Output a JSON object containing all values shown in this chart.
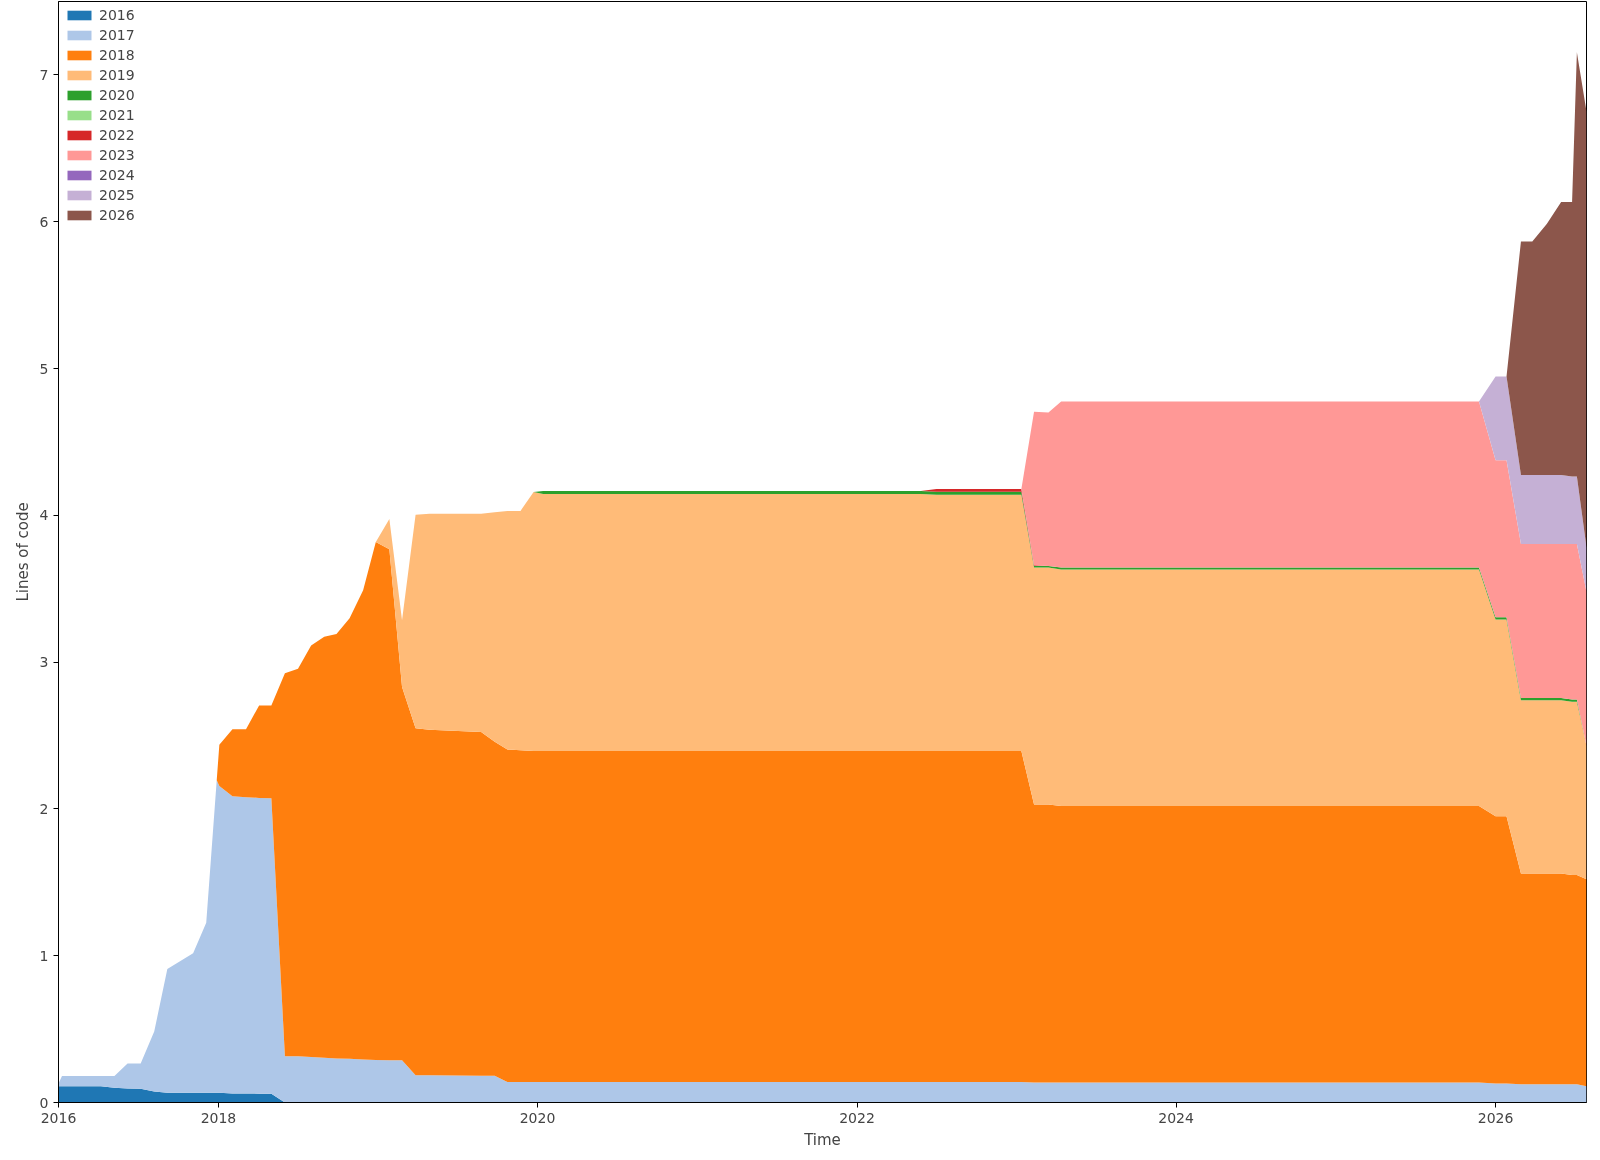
{
  "chart_data": {
    "type": "area",
    "stacked": true,
    "xlabel": "Time",
    "ylabel": "Lines of code",
    "x": [
      "2016-12-31",
      "2017-01-08",
      "2017-04-07",
      "2017-05-08",
      "2017-06-07",
      "2017-07-07",
      "2017-08-07",
      "2017-09-06",
      "2017-11-04",
      "2017-12-04",
      "2017-12-28",
      "2018-01-03",
      "2018-02-02",
      "2018-03-05",
      "2018-04-04",
      "2018-05-02",
      "2018-06-02",
      "2018-07-02",
      "2018-08-01",
      "2018-08-31",
      "2018-09-28",
      "2018-10-28",
      "2018-11-28",
      "2018-12-27",
      "2019-01-27",
      "2019-02-25",
      "2019-03-28",
      "2019-04-29",
      "2019-08-25",
      "2019-09-25",
      "2019-10-24",
      "2019-11-23",
      "2019-12-23",
      "2020-01-14",
      "2022-05-27",
      "2022-07-02",
      "2023-01-12",
      "2023-02-10",
      "2023-03-15",
      "2023-04-13",
      "2025-11-24",
      "2026-01-01",
      "2026-01-26",
      "2026-02-28",
      "2026-03-26",
      "2026-04-28",
      "2026-05-31",
      "2026-06-25",
      "2026-07-06",
      "2026-07-28"
    ],
    "xlim": [
      "2016-12-31",
      "2026-07-28"
    ],
    "ylim": [
      0,
      7.5
    ],
    "xticks": [
      {
        "value": "2016-12-31",
        "label": "2016"
      },
      "2018",
      "2020",
      "2022",
      "2024",
      "2026"
    ],
    "yticks": [
      0,
      1,
      2,
      3,
      4,
      5,
      6,
      7
    ],
    "grid": false,
    "legend": "top left",
    "series": [
      {
        "name": "2016",
        "color": "#1f77b4",
        "values": [
          0.11,
          0.11,
          0.11,
          0.1,
          0.095,
          0.093,
          0.075,
          0.066,
          0.066,
          0.066,
          0.066,
          0.066,
          0.062,
          0.062,
          0.06,
          0.06,
          0,
          0,
          0,
          0,
          0,
          0,
          0,
          0,
          0,
          0,
          0,
          0,
          0,
          0,
          0,
          0,
          0,
          0,
          0,
          0,
          0,
          0,
          0,
          0,
          0,
          0,
          0,
          0,
          0,
          0,
          0,
          0,
          0,
          0
        ]
      },
      {
        "name": "2017",
        "color": "#aec7e8",
        "values": [
          0.02,
          0.07,
          0.07,
          0.08,
          0.17,
          0.172,
          0.408,
          0.844,
          0.951,
          1.159,
          2.129,
          2.09,
          2.024,
          2.018,
          2.015,
          2.013,
          0.315,
          0.315,
          0.31,
          0.305,
          0.3,
          0.298,
          0.293,
          0.29,
          0.288,
          0.288,
          0.185,
          0.185,
          0.182,
          0.182,
          0.139,
          0.139,
          0.139,
          0.139,
          0.139,
          0.139,
          0.139,
          0.137,
          0.137,
          0.137,
          0.137,
          0.13,
          0.13,
          0.125,
          0.125,
          0.125,
          0.125,
          0.125,
          0.125,
          0.11
        ]
      },
      {
        "name": "2018",
        "color": "#ff7f0e",
        "values": [
          0,
          0,
          0,
          0,
          0,
          0,
          0,
          0,
          0,
          0,
          0,
          0.281,
          0.457,
          0.463,
          0.63,
          0.632,
          2.609,
          2.639,
          2.803,
          2.867,
          2.892,
          3.0,
          3.197,
          3.528,
          3.48,
          2.543,
          2.365,
          2.355,
          2.341,
          2.275,
          2.265,
          2.261,
          2.255,
          2.255,
          2.255,
          2.255,
          2.255,
          1.893,
          1.893,
          1.883,
          1.883,
          1.82,
          1.82,
          1.435,
          1.435,
          1.435,
          1.435,
          1.425,
          1.425,
          1.41
        ]
      },
      {
        "name": "2019",
        "color": "#ffbb78",
        "values": [
          0,
          0,
          0,
          0,
          0,
          0,
          0,
          0,
          0,
          0,
          0,
          0,
          0,
          0,
          0,
          0,
          0,
          0,
          0,
          0,
          0,
          0,
          0,
          0,
          0.206,
          0.454,
          1.453,
          1.47,
          1.487,
          1.563,
          1.626,
          1.63,
          1.765,
          1.751,
          1.751,
          1.746,
          1.746,
          1.615,
          1.615,
          1.61,
          1.61,
          1.34,
          1.34,
          1.18,
          1.18,
          1.18,
          1.18,
          1.18,
          1.18,
          0.91
        ]
      },
      {
        "name": "2020",
        "color": "#2ca02c",
        "values": [
          null,
          null,
          null,
          null,
          null,
          null,
          null,
          null,
          null,
          null,
          null,
          null,
          null,
          null,
          null,
          null,
          null,
          null,
          null,
          null,
          null,
          null,
          null,
          null,
          null,
          null,
          null,
          null,
          null,
          null,
          null,
          null,
          0,
          0.02,
          0.02,
          0.02,
          0.02,
          0.01,
          0.01,
          0.015,
          0.015,
          0.015,
          0.015,
          0.015,
          0.015,
          0.015,
          0.015,
          0.015,
          0.015,
          0
        ]
      },
      {
        "name": "2021",
        "color": "#98df8a",
        "values": [
          null,
          null,
          null,
          null,
          null,
          null,
          null,
          null,
          null,
          null,
          null,
          null,
          null,
          null,
          null,
          null,
          null,
          null,
          null,
          null,
          null,
          null,
          null,
          null,
          null,
          null,
          null,
          null,
          null,
          null,
          null,
          null,
          null,
          null,
          null,
          null,
          null,
          null,
          null,
          null,
          null,
          null,
          null,
          null,
          null,
          null,
          null,
          null,
          null,
          null
        ]
      },
      {
        "name": "2022",
        "color": "#d62728",
        "values": [
          0,
          0,
          0,
          0,
          0,
          0,
          0,
          0,
          0,
          0,
          0,
          0,
          0,
          0,
          0,
          0,
          0,
          0,
          0,
          0,
          0,
          0,
          0,
          0,
          0,
          0,
          0,
          0,
          0,
          0,
          0,
          0,
          0,
          0,
          0,
          0.02,
          0.02,
          0.005,
          0,
          0,
          0,
          0,
          0,
          0,
          0,
          0,
          0,
          0,
          0,
          0
        ]
      },
      {
        "name": "2023",
        "color": "#ff9896",
        "values": [
          0,
          0,
          0,
          0,
          0,
          0,
          0,
          0,
          0,
          0,
          0,
          0,
          0,
          0,
          0,
          0,
          0,
          0,
          0,
          0,
          0,
          0,
          0,
          0,
          0,
          0,
          0,
          0,
          0,
          0,
          0,
          0,
          0,
          0,
          0,
          0,
          0,
          1.045,
          1.045,
          1.13,
          1.13,
          1.07,
          1.07,
          1.05,
          1.05,
          1.05,
          1.05,
          1.06,
          1.06,
          1.05
        ]
      },
      {
        "name": "2024",
        "color": "#9467bd",
        "values": [
          null,
          null,
          null,
          null,
          null,
          null,
          null,
          null,
          null,
          null,
          null,
          null,
          null,
          null,
          null,
          null,
          null,
          null,
          null,
          null,
          null,
          null,
          null,
          null,
          null,
          null,
          null,
          null,
          null,
          null,
          null,
          null,
          null,
          null,
          null,
          null,
          null,
          null,
          null,
          null,
          null,
          null,
          null,
          null,
          null,
          null,
          null,
          null,
          null,
          null
        ]
      },
      {
        "name": "2025",
        "color": "#c5b0d5",
        "values": [
          0,
          0,
          0,
          0,
          0,
          0,
          0,
          0,
          0,
          0,
          0,
          0,
          0,
          0,
          0,
          0,
          0,
          0,
          0,
          0,
          0,
          0,
          0,
          0,
          0,
          0,
          0,
          0,
          0,
          0,
          0,
          0,
          0,
          0,
          0,
          0,
          0,
          0,
          0,
          0,
          0,
          0.57,
          0.57,
          0.47,
          0.47,
          0.47,
          0.47,
          0.46,
          0.46,
          0.3
        ]
      },
      {
        "name": "2026",
        "color": "#8c564b",
        "values": [
          0,
          0,
          0,
          0,
          0,
          0,
          0,
          0,
          0,
          0,
          0,
          0,
          0,
          0,
          0,
          0,
          0,
          0,
          0,
          0,
          0,
          0,
          0,
          0,
          0,
          0,
          0,
          0,
          0,
          0,
          0,
          0,
          0,
          0,
          0,
          0,
          0,
          0,
          0,
          0,
          0,
          0,
          0,
          1.59,
          1.59,
          1.71,
          1.86,
          1.87,
          2.89,
          2.97
        ]
      }
    ]
  }
}
